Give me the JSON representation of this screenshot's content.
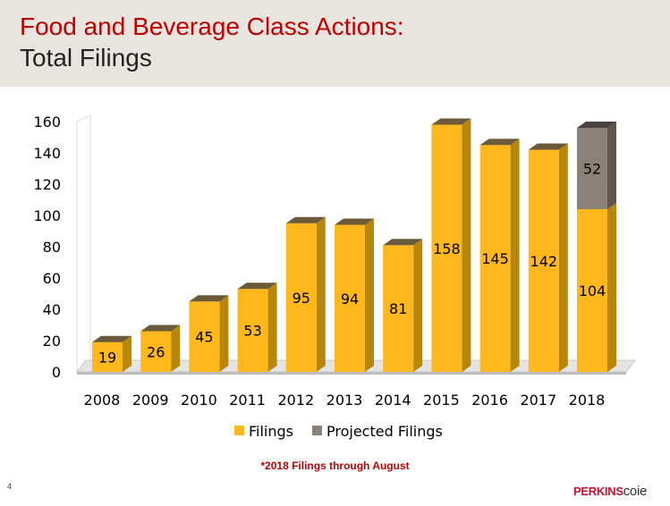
{
  "header": {
    "title": "Food and Beverage Class Actions:",
    "subtitle": "Total Filings"
  },
  "footnote": "*2018 Filings through August",
  "page_number": "4",
  "logo": {
    "part1": "PERKINS",
    "part2": "COIE"
  },
  "colors": {
    "filings": "#ffb81c",
    "projected": "#8c8178",
    "title": "#c00000"
  },
  "chart_data": {
    "type": "bar",
    "stacked": true,
    "three_d": true,
    "categories": [
      "2008",
      "2009",
      "2010",
      "2011",
      "2012",
      "2013",
      "2014",
      "2015",
      "2016",
      "2017",
      "2018"
    ],
    "series": [
      {
        "name": "Filings",
        "values": [
          19,
          26,
          45,
          53,
          95,
          94,
          81,
          158,
          145,
          142,
          104
        ]
      },
      {
        "name": "Projected Filings",
        "values": [
          0,
          0,
          0,
          0,
          0,
          0,
          0,
          0,
          0,
          0,
          52
        ]
      }
    ],
    "yticks": [
      0,
      20,
      40,
      60,
      80,
      100,
      120,
      140,
      160
    ],
    "ylim": [
      0,
      160
    ],
    "grid": false,
    "legend": "bottom"
  }
}
